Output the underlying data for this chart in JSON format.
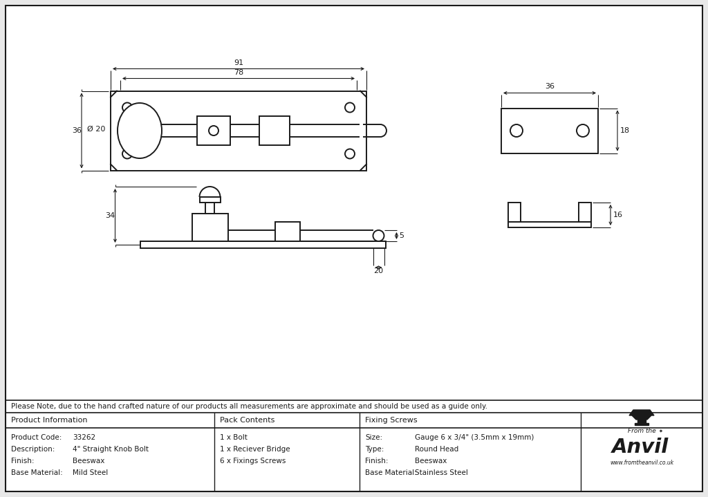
{
  "bg_color": "#e8e8e8",
  "drawing_bg": "#ffffff",
  "line_color": "#1a1a1a",
  "note_text": "Please Note, due to the hand crafted nature of our products all measurements are approximate and should be used as a guide only.",
  "product_info": [
    [
      "Product Code:",
      "33262"
    ],
    [
      "Description:",
      "4\" Straight Knob Bolt"
    ],
    [
      "Finish:",
      "Beeswax"
    ],
    [
      "Base Material:",
      "Mild Steel"
    ]
  ],
  "pack_contents": [
    "1 x Bolt",
    "1 x Reciever Bridge",
    "6 x Fixings Screws"
  ],
  "fixing_screws": [
    [
      "Size:",
      "Gauge 6 x 3/4\" (3.5mm x 19mm)"
    ],
    [
      "Type:",
      "Round Head"
    ],
    [
      "Finish:",
      "Beeswax"
    ],
    [
      "Base Material:",
      "Stainless Steel"
    ]
  ]
}
